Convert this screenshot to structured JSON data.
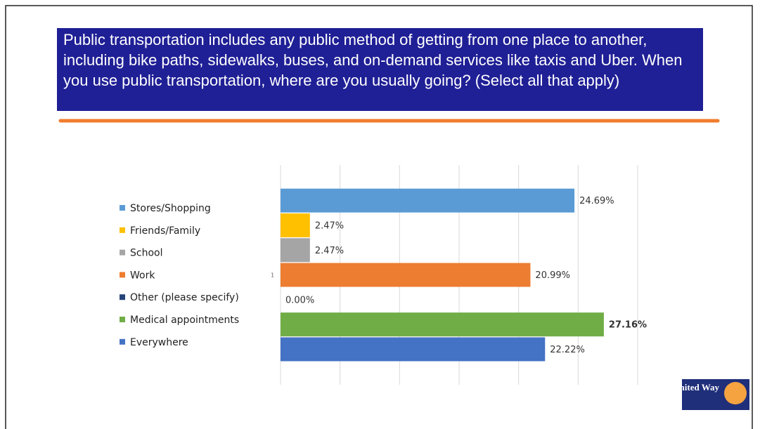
{
  "chart_data": {
    "type": "bar",
    "orientation": "horizontal",
    "title": "Public transportation includes any public method of getting from one place to another, including bike paths, sidewalks, buses, and on-demand services like taxis and Uber. When you use public transportation, where are you usually going? (Select all that apply)",
    "categories": [
      "Stores/Shopping",
      "Friends/Family",
      "School",
      "Work",
      "Other (please specify)",
      "Medical appointments",
      "Everywhere"
    ],
    "values": [
      24.69,
      2.47,
      2.47,
      20.99,
      0,
      27.16,
      22.22
    ],
    "value_labels": [
      "24.69%",
      "2.47%",
      "2.47%",
      "20.99%",
      "0.00%",
      "27.16%",
      "22.22%"
    ],
    "colors": [
      "#5b9bd5",
      "#ffc000",
      "#a5a5a5",
      "#ed7d31",
      "#264478",
      "#70ad47",
      "#4472c4"
    ],
    "xlim": [
      0,
      30
    ],
    "xticks": [
      0,
      5,
      10,
      15,
      20,
      25,
      30
    ],
    "grid": true,
    "legend": "left",
    "annotation": "1",
    "logo": "United Way"
  }
}
